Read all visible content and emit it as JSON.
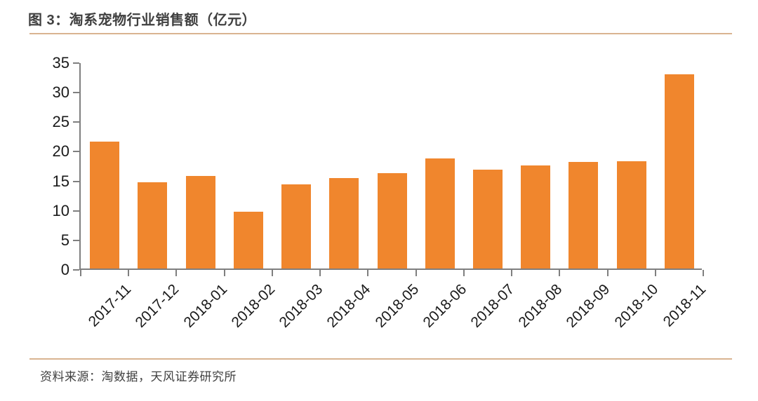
{
  "header": {
    "title": "图 3：淘系宠物行业销售额（亿元）"
  },
  "footer": {
    "source": "资料来源：淘数据，天风证券研究所"
  },
  "colors": {
    "bar": "#f0862d",
    "divider": "#d9b491",
    "axis": "#7f7f7f",
    "title_text": "#404040",
    "tick_text": "#1a1a1a"
  },
  "chart_data": {
    "type": "bar",
    "title": "图 3：淘系宠物行业销售额（亿元）",
    "categories": [
      "2017-11",
      "2017-12",
      "2018-01",
      "2018-02",
      "2018-03",
      "2018-04",
      "2018-05",
      "2018-06",
      "2018-07",
      "2018-08",
      "2018-09",
      "2018-10",
      "2018-11"
    ],
    "values": [
      21.5,
      14.6,
      15.7,
      9.6,
      14.2,
      15.3,
      16.1,
      18.6,
      16.7,
      17.5,
      18.0,
      18.2,
      32.9
    ],
    "xlabel": "",
    "ylabel": "",
    "ylim": [
      0,
      35
    ],
    "yticks": [
      0,
      5,
      10,
      15,
      20,
      25,
      30,
      35
    ],
    "grid": false,
    "legend_position": "none",
    "x_tick_rotation_deg": 45
  }
}
